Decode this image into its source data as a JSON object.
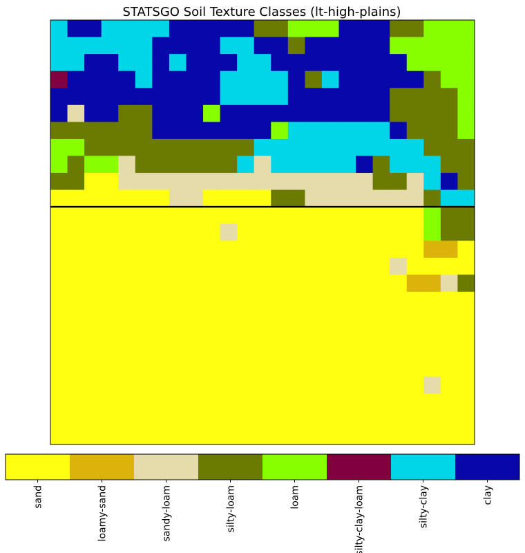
{
  "chart_data": {
    "type": "heatmap",
    "title": "STATSGO Soil Texture Classes (lt-high-plains)",
    "grid": false,
    "categories": [
      "sand",
      "loamy-sand",
      "sandy-loam",
      "silty-loam",
      "loam",
      "silty-clay-loam",
      "silty-clay",
      "clay"
    ],
    "category_colors": [
      "#ffff11",
      "#dbb30a",
      "#e6dbab",
      "#6b7a00",
      "#88ff00",
      "#800040",
      "#00d6e8",
      "#0808aa"
    ],
    "colorbar": {
      "placement": "bottom",
      "tick_rotation": 90
    },
    "n_rows": 25,
    "n_cols": 25,
    "divider_after_row": 11,
    "rows": [
      "6776666777773344477733444",
      "6666667777667737777744444",
      "6677667677766777777774444",
      "5777767777666673677777344",
      "7777777777666677777733334",
      "7277337774777777777733334",
      "3333337777777466666673334",
      "4433333333336666666666333",
      "4344233333362666667366633",
      "3300222222222222222332673",
      "0000000220000332222222366",
      "0000000000000000000000433",
      "0000000000200000000000433",
      "0000000000000000000000110",
      "0000000000000000000020000",
      "0000000000000000000001123",
      "0000000000000000000000000",
      "0000000000000000000000000",
      "0000000000000000000000000",
      "0000000000000000000000000",
      "0000000000000000000000000",
      "0000000000000000000000200",
      "0000000000000000000000000",
      "0000000000000000000000000",
      "0000000000000000000000000"
    ]
  }
}
